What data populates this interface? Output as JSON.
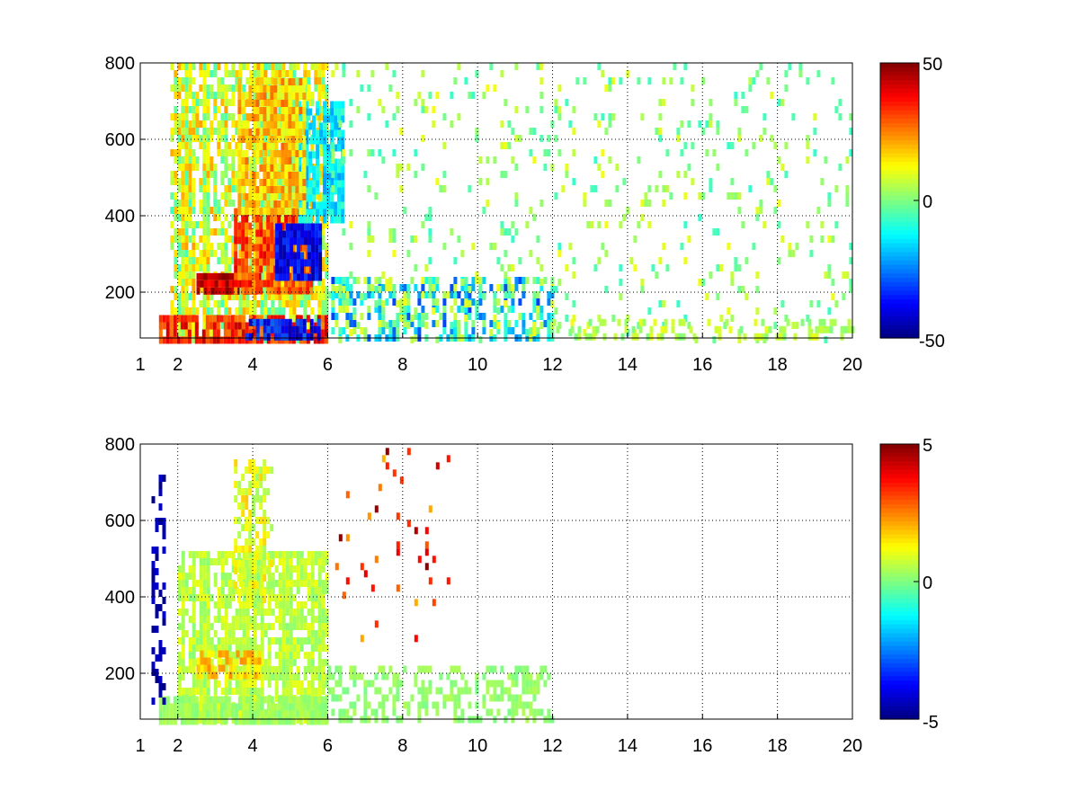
{
  "figure": {
    "background": "#ffffff"
  },
  "chart_data": [
    {
      "type": "heatmap",
      "x_ticks": [
        "1",
        "2",
        "4",
        "6",
        "8",
        "10",
        "12",
        "14",
        "16",
        "18",
        "20"
      ],
      "y_ticks": [
        "200",
        "400",
        "600",
        "800"
      ],
      "xlim": [
        1,
        20
      ],
      "ylim": [
        80,
        800
      ],
      "grid": true,
      "colorbar": {
        "ticks": [
          "50",
          "0",
          "-50"
        ],
        "clim": [
          -50,
          50
        ],
        "colormap": "jet"
      },
      "features": [
        {
          "x": [
            1.8,
            6.0
          ],
          "y": [
            80,
            800
          ],
          "value": 8,
          "density": 0.75,
          "spread": 14
        },
        {
          "x": [
            2.5,
            4.2
          ],
          "y": [
            200,
            250
          ],
          "value": 42,
          "density": 0.95,
          "spread": 8
        },
        {
          "x": [
            3.5,
            5.6
          ],
          "y": [
            200,
            420
          ],
          "value": 30,
          "density": 0.9,
          "spread": 10
        },
        {
          "x": [
            4.6,
            5.8
          ],
          "y": [
            230,
            380
          ],
          "value": -38,
          "density": 0.95,
          "spread": 8
        },
        {
          "x": [
            5.2,
            6.4
          ],
          "y": [
            380,
            700
          ],
          "value": -14,
          "density": 0.8,
          "spread": 8
        },
        {
          "x": [
            3.6,
            5.4
          ],
          "y": [
            420,
            760
          ],
          "value": 18,
          "density": 0.7,
          "spread": 10
        },
        {
          "x": [
            1.5,
            6.0
          ],
          "y": [
            80,
            140
          ],
          "value": 34,
          "density": 0.9,
          "spread": 10
        },
        {
          "x": [
            3.8,
            5.8
          ],
          "y": [
            80,
            130
          ],
          "value": -36,
          "density": 0.8,
          "spread": 10
        },
        {
          "x": [
            6.0,
            12.0
          ],
          "y": [
            80,
            240
          ],
          "value": -10,
          "density": 0.55,
          "spread": 22
        },
        {
          "x": [
            6.0,
            20.0
          ],
          "y": [
            80,
            800
          ],
          "value": 2,
          "density": 0.1,
          "spread": 10
        },
        {
          "x": [
            12.0,
            20.0
          ],
          "y": [
            80,
            130
          ],
          "value": 5,
          "density": 0.3,
          "spread": 6
        }
      ]
    },
    {
      "type": "heatmap",
      "x_ticks": [
        "1",
        "2",
        "4",
        "6",
        "8",
        "10",
        "12",
        "14",
        "16",
        "18",
        "20"
      ],
      "y_ticks": [
        "200",
        "400",
        "600",
        "800"
      ],
      "xlim": [
        1,
        20
      ],
      "ylim": [
        80,
        800
      ],
      "grid": true,
      "colorbar": {
        "ticks": [
          "5",
          "0",
          "-5"
        ],
        "clim": [
          -5,
          5
        ],
        "colormap": "jet"
      },
      "features": [
        {
          "x": [
            2.0,
            6.0
          ],
          "y": [
            80,
            520
          ],
          "value": 0.6,
          "density": 0.8,
          "spread": 0.5
        },
        {
          "x": [
            3.5,
            4.5
          ],
          "y": [
            400,
            760
          ],
          "value": 1.0,
          "density": 0.55,
          "spread": 0.8
        },
        {
          "x": [
            2.5,
            4.2
          ],
          "y": [
            200,
            260
          ],
          "value": 1.8,
          "density": 0.7,
          "spread": 0.6
        },
        {
          "x": [
            1.5,
            6.0
          ],
          "y": [
            80,
            140
          ],
          "value": 0.3,
          "density": 0.9,
          "spread": 0.3
        },
        {
          "x": [
            6.0,
            12.0
          ],
          "y": [
            80,
            220
          ],
          "value": 0.2,
          "density": 0.45,
          "spread": 0.3
        },
        {
          "x": [
            1.3,
            1.6
          ],
          "y": [
            120,
            720
          ],
          "value": -4.5,
          "density": 0.35,
          "spread": 0.5
        },
        {
          "x": [
            6.2,
            9.2
          ],
          "y": [
            300,
            790
          ],
          "value": 3.5,
          "density": 0.04,
          "spread": 1.5
        }
      ]
    }
  ]
}
